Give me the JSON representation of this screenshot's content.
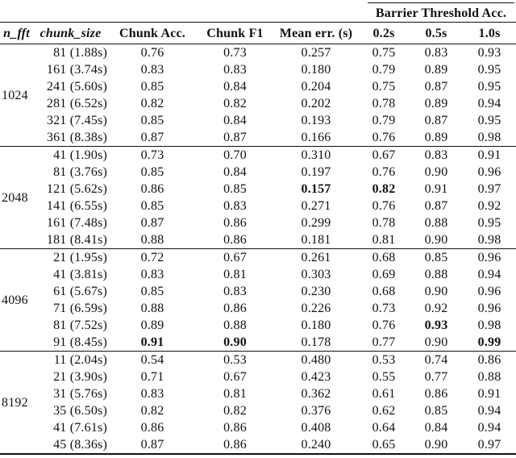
{
  "table": {
    "spanner_label": "Barrier Threshold Acc.",
    "columns": [
      "n_fft",
      "chunk_size",
      "Chunk Acc.",
      "Chunk F1",
      "Mean err. (s)",
      "0.2s",
      "0.5s",
      "1.0s"
    ],
    "groups": [
      {
        "n_fft": "1024",
        "rows": [
          {
            "chunk_size": "81 (1.88s)",
            "values": [
              "0.76",
              "0.73",
              "0.257",
              "0.75",
              "0.83",
              "0.93"
            ],
            "bold": []
          },
          {
            "chunk_size": "161 (3.74s)",
            "values": [
              "0.83",
              "0.83",
              "0.180",
              "0.79",
              "0.89",
              "0.95"
            ],
            "bold": []
          },
          {
            "chunk_size": "241 (5.60s)",
            "values": [
              "0.85",
              "0.84",
              "0.204",
              "0.75",
              "0.87",
              "0.95"
            ],
            "bold": []
          },
          {
            "chunk_size": "281 (6.52s)",
            "values": [
              "0.82",
              "0.82",
              "0.202",
              "0.78",
              "0.89",
              "0.94"
            ],
            "bold": []
          },
          {
            "chunk_size": "321 (7.45s)",
            "values": [
              "0.85",
              "0.84",
              "0.193",
              "0.79",
              "0.87",
              "0.95"
            ],
            "bold": []
          },
          {
            "chunk_size": "361 (8.38s)",
            "values": [
              "0.87",
              "0.87",
              "0.166",
              "0.76",
              "0.89",
              "0.98"
            ],
            "bold": []
          }
        ]
      },
      {
        "n_fft": "2048",
        "rows": [
          {
            "chunk_size": "41 (1.90s)",
            "values": [
              "0.73",
              "0.70",
              "0.310",
              "0.67",
              "0.83",
              "0.91"
            ],
            "bold": []
          },
          {
            "chunk_size": "81 (3.76s)",
            "values": [
              "0.85",
              "0.84",
              "0.197",
              "0.76",
              "0.90",
              "0.96"
            ],
            "bold": []
          },
          {
            "chunk_size": "121 (5.62s)",
            "values": [
              "0.86",
              "0.85",
              "0.157",
              "0.82",
              "0.91",
              "0.97"
            ],
            "bold": [
              2,
              3
            ]
          },
          {
            "chunk_size": "141 (6.55s)",
            "values": [
              "0.85",
              "0.83",
              "0.271",
              "0.76",
              "0.87",
              "0.92"
            ],
            "bold": []
          },
          {
            "chunk_size": "161 (7.48s)",
            "values": [
              "0.87",
              "0.86",
              "0.299",
              "0.78",
              "0.88",
              "0.95"
            ],
            "bold": []
          },
          {
            "chunk_size": "181 (8.41s)",
            "values": [
              "0.88",
              "0.86",
              "0.181",
              "0.81",
              "0.90",
              "0.98"
            ],
            "bold": []
          }
        ]
      },
      {
        "n_fft": "4096",
        "rows": [
          {
            "chunk_size": "21 (1.95s)",
            "values": [
              "0.72",
              "0.67",
              "0.261",
              "0.68",
              "0.85",
              "0.96"
            ],
            "bold": []
          },
          {
            "chunk_size": "41 (3.81s)",
            "values": [
              "0.83",
              "0.81",
              "0.303",
              "0.69",
              "0.88",
              "0.94"
            ],
            "bold": []
          },
          {
            "chunk_size": "61 (5.67s)",
            "values": [
              "0.85",
              "0.83",
              "0.230",
              "0.68",
              "0.90",
              "0.96"
            ],
            "bold": []
          },
          {
            "chunk_size": "71 (6.59s)",
            "values": [
              "0.88",
              "0.86",
              "0.226",
              "0.73",
              "0.92",
              "0.96"
            ],
            "bold": []
          },
          {
            "chunk_size": "81 (7.52s)",
            "values": [
              "0.89",
              "0.88",
              "0.180",
              "0.76",
              "0.93",
              "0.98"
            ],
            "bold": [
              4
            ]
          },
          {
            "chunk_size": "91 (8.45s)",
            "values": [
              "0.91",
              "0.90",
              "0.178",
              "0.77",
              "0.90",
              "0.99"
            ],
            "bold": [
              0,
              1,
              5
            ]
          }
        ]
      },
      {
        "n_fft": "8192",
        "rows": [
          {
            "chunk_size": "11 (2.04s)",
            "values": [
              "0.54",
              "0.53",
              "0.480",
              "0.53",
              "0.74",
              "0.86"
            ],
            "bold": []
          },
          {
            "chunk_size": "21 (3.90s)",
            "values": [
              "0.71",
              "0.67",
              "0.423",
              "0.55",
              "0.77",
              "0.88"
            ],
            "bold": []
          },
          {
            "chunk_size": "31 (5.76s)",
            "values": [
              "0.83",
              "0.81",
              "0.362",
              "0.61",
              "0.86",
              "0.91"
            ],
            "bold": []
          },
          {
            "chunk_size": "35 (6.50s)",
            "values": [
              "0.82",
              "0.82",
              "0.376",
              "0.62",
              "0.85",
              "0.94"
            ],
            "bold": []
          },
          {
            "chunk_size": "41 (7.61s)",
            "values": [
              "0.86",
              "0.86",
              "0.408",
              "0.64",
              "0.84",
              "0.94"
            ],
            "bold": []
          },
          {
            "chunk_size": "45 (8.36s)",
            "values": [
              "0.87",
              "0.86",
              "0.240",
              "0.65",
              "0.90",
              "0.97"
            ],
            "bold": []
          }
        ]
      }
    ],
    "colors": {
      "rule": "#111111",
      "text": "#111111",
      "background": "#ffffff"
    }
  }
}
